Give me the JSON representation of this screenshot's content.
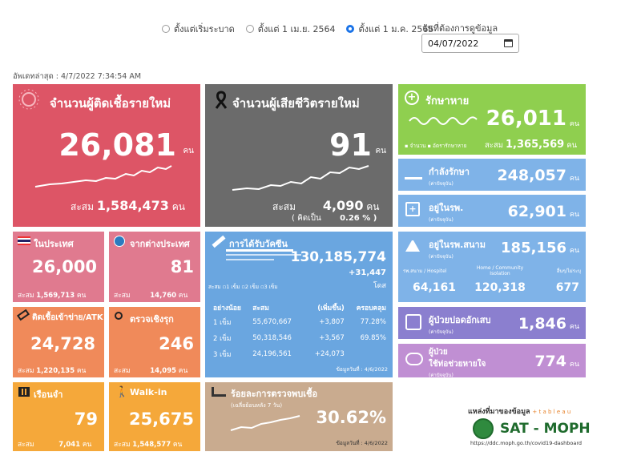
{
  "filters": {
    "options": [
      "ตั้งแต่เริ่มระบาด",
      "ตั้งแต่ 1 เม.ย. 2564",
      "ตั้งแต่ 1 ม.ค. 2565"
    ],
    "selected_index": 2,
    "date_label": "วันที่ต้องการดูข้อมูล",
    "date_value": "04/07/2022"
  },
  "updated": "อัพเดทล่าสุด : 4/7/2022 7:34:54 AM",
  "new_cases": {
    "title": "จำนวนผู้ติดเชื้อรายใหม่",
    "value": "26,081",
    "unit": "คน",
    "cum_label": "สะสม",
    "cum_value": "1,584,473",
    "cum_unit": "คน"
  },
  "new_deaths": {
    "title": "จำนวนผู้เสียชีวิตรายใหม่",
    "value": "91",
    "unit": "คน",
    "cum_label": "สะสม",
    "cum_value": "4,090",
    "cum_unit": "คน",
    "rate_label": "( คิดเป็น",
    "rate_value": "0.26 % )"
  },
  "recovered": {
    "title": "รักษาหาย",
    "value": "26,011",
    "unit": "คน",
    "legend_count": "จำนวน",
    "legend_rate": "อัตรารักษาหาย",
    "cum_label": "สะสม",
    "cum_value": "1,365,569",
    "cum_unit": "คน"
  },
  "treating": {
    "title": "กำลังรักษา",
    "sub": "(ค่าปัจจุบัน)",
    "value": "248,057",
    "unit": "คน"
  },
  "hospital": {
    "title": "อยู่ในรพ.",
    "sub": "(ค่าปัจจุบัน)",
    "value": "62,901",
    "unit": "คน"
  },
  "field_hospital": {
    "title": "อยู่ในรพ.สนาม",
    "sub": "(ค่าปัจจุบัน)",
    "value": "185,156",
    "unit": "คน",
    "cols": [
      {
        "label": "รพ.สนาม / Hospitel",
        "value": "64,161"
      },
      {
        "label": "Home / Community Isolation",
        "value": "120,318"
      },
      {
        "label": "อื่นๆ/ไม่ระบุ",
        "value": "677"
      }
    ]
  },
  "severe": {
    "title": "ผู้ป่วยปอดอักเสบ",
    "sub": "(ค่าปัจจุบัน)",
    "value": "1,846",
    "unit": "คน"
  },
  "ventilator": {
    "title1": "ผู้ป่วย",
    "title2": "ใช้ท่อช่วยหายใจ",
    "sub": "(ค่าปัจจุบัน)",
    "value": "774",
    "unit": "คน"
  },
  "domestic": {
    "title": "ในประเทศ",
    "value": "26,000",
    "cum_label": "สะสม",
    "cum_value": "1,569,713",
    "cum_unit": "คน"
  },
  "imported": {
    "title": "จากต่างประเทศ",
    "value": "81",
    "cum_label": "สะสม",
    "cum_value": "14,760",
    "cum_unit": "คน"
  },
  "prison_atk": {
    "title": "ติดเชื้อเข้าข่าย/ATK",
    "value": "24,728",
    "cum_label": "สะสม",
    "cum_value": "1,220,135",
    "cum_unit": "คน"
  },
  "proactive": {
    "title": "ตรวจเชิงรุก",
    "value": "246",
    "cum_label": "สะสม",
    "cum_value": "14,095",
    "cum_unit": "คน"
  },
  "prison": {
    "title": "เรือนจำ",
    "value": "79",
    "cum_label": "สะสม",
    "cum_value": "7,041",
    "cum_unit": "คน"
  },
  "walkin": {
    "title": "Walk-in",
    "value": "25,675",
    "cum_label": "สะสม",
    "cum_value": "1,548,577",
    "cum_unit": "คน"
  },
  "vaccine": {
    "title": "การได้รับวัคซีน",
    "total": "130,185,774",
    "delta": "+31,447",
    "dose_unit": "โดส",
    "legend": [
      "สะสม",
      "1 เข็ม",
      "2 เข็ม",
      "3 เข็ม"
    ],
    "headers": [
      "อย่างน้อย",
      "สะสม",
      "(เพิ่มขึ้น)",
      "ครอบคลุม"
    ],
    "rows": [
      {
        "dose": "1 เข็ม",
        "cum": "55,670,667",
        "inc": "+3,807",
        "cov": "77.28%"
      },
      {
        "dose": "2 เข็ม",
        "cum": "50,318,546",
        "inc": "+3,567",
        "cov": "69.85%"
      },
      {
        "dose": "3 เข็ม",
        "cum": "24,196,561",
        "inc": "+24,073",
        "cov": ""
      }
    ],
    "asof": "ข้อมูลวันที่ : 4/6/2022"
  },
  "positivity": {
    "title": "ร้อยละการตรวจพบเชื้อ",
    "sub": "(เฉลี่ยย้อนหลัง 7 วัน)",
    "value": "30.62%",
    "asof": "ข้อมูลวันที่ : 4/6/2022"
  },
  "source": {
    "label": "แหล่งที่มาของข้อมูล",
    "tableau": "+ t a b l e a u",
    "brand": "SAT - MOPH",
    "url": "https://ddc.moph.go.th/covid19-dashboard"
  },
  "colors": {
    "red": "#dd5566",
    "gray": "#6b6b6b",
    "green": "#8fcf4f",
    "blue": "#7fb3e8",
    "purple": "#8b7fcf",
    "violet": "#c08fd3"
  }
}
